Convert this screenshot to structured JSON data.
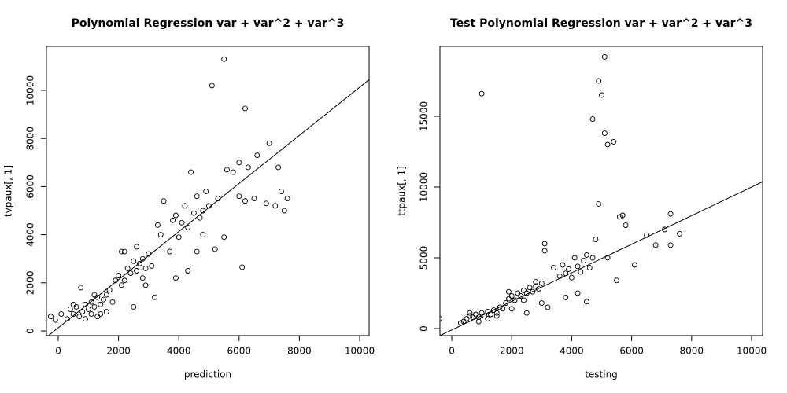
{
  "chart_data": [
    {
      "type": "scatter",
      "title": "Polynomial Regression var + var^2 + var^3",
      "xlabel": "prediction",
      "ylabel": "tvpaux[, 1]",
      "x": [
        -250,
        -100,
        100,
        300,
        400,
        500,
        600,
        700,
        800,
        900,
        1000,
        1100,
        1200,
        1300,
        1400,
        1500,
        1600,
        750,
        500,
        1100,
        1300,
        1600,
        1800,
        1900,
        2000,
        2100,
        2200,
        2300,
        2400,
        2500,
        2600,
        2700,
        2800,
        2900,
        3000,
        3100,
        2600,
        2200,
        2500,
        2900,
        3200,
        3500,
        3400,
        3700,
        3800,
        3900,
        4000,
        4100,
        4200,
        4300,
        4400,
        4500,
        4600,
        4700,
        4800,
        4900,
        5000,
        5100,
        5500,
        4300,
        3900,
        5200,
        5500,
        5600,
        5800,
        6000,
        6100,
        6200,
        6300,
        6500,
        6600,
        6900,
        7000,
        7200,
        7300,
        7400,
        7500,
        7600,
        6000,
        6200,
        4800,
        5300,
        4600,
        3300,
        2800,
        1700,
        900,
        1200,
        1400,
        2100
      ],
      "y": [
        600,
        450,
        700,
        500,
        900,
        700,
        1000,
        600,
        800,
        1100,
        900,
        1200,
        1000,
        1400,
        1100,
        1300,
        1500,
        1800,
        1100,
        700,
        600,
        800,
        1200,
        2100,
        2300,
        1900,
        2100,
        2600,
        2400,
        2900,
        2500,
        2800,
        3000,
        2600,
        3200,
        2700,
        3500,
        3300,
        1000,
        1900,
        1400,
        5400,
        4000,
        3300,
        4600,
        4800,
        3900,
        4500,
        5200,
        4300,
        6600,
        4900,
        5600,
        4700,
        5000,
        5800,
        5200,
        10200,
        11300,
        2500,
        2200,
        3400,
        3900,
        6700,
        6600,
        5600,
        2650,
        9250,
        6800,
        5500,
        7300,
        5300,
        7800,
        5200,
        6800,
        5800,
        5000,
        5500,
        7000,
        5400,
        4000,
        5500,
        3300,
        4400,
        2200,
        1700,
        500,
        1500,
        700,
        3300
      ],
      "xlim": [
        -392,
        10313
      ],
      "ylim": [
        -196,
        11830
      ],
      "xticks": [
        0,
        2000,
        4000,
        6000,
        8000,
        10000
      ],
      "yticks": [
        0,
        2000,
        4000,
        6000,
        8000,
        10000
      ],
      "abline": {
        "intercept": 130,
        "slope": 1.0
      }
    },
    {
      "type": "scatter",
      "title": "Test Polynomial Regression var + var^2 + var^3",
      "xlabel": "testing",
      "ylabel": "ttpaux[, 1]",
      "x": [
        -400,
        300,
        400,
        500,
        600,
        700,
        800,
        900,
        1000,
        1100,
        1200,
        1300,
        1400,
        1500,
        1600,
        1700,
        1800,
        1900,
        2000,
        2100,
        2200,
        2300,
        2400,
        2500,
        2600,
        2700,
        2800,
        2900,
        3000,
        3100,
        3100,
        2000,
        1500,
        2500,
        3200,
        3400,
        3600,
        3700,
        3800,
        3900,
        4000,
        4100,
        4200,
        4300,
        4400,
        4500,
        4600,
        4700,
        4800,
        3800,
        4200,
        4500,
        1000,
        4700,
        4900,
        5100,
        5000,
        5100,
        5200,
        5400,
        4900,
        7300,
        6500,
        7100,
        7300,
        7600,
        6800,
        5700,
        5600,
        5800,
        6100,
        5200,
        5500,
        3000,
        1200,
        2800,
        2400,
        600,
        1900,
        900
      ],
      "y": [
        700,
        400,
        500,
        700,
        900,
        800,
        1000,
        800,
        1100,
        900,
        1200,
        1000,
        1300,
        1100,
        1500,
        1400,
        1800,
        2100,
        2300,
        2000,
        2500,
        2300,
        2700,
        2500,
        2900,
        2600,
        3000,
        2800,
        3200,
        6000,
        5500,
        1400,
        900,
        1100,
        1500,
        4300,
        3700,
        4500,
        3900,
        4200,
        3600,
        5000,
        4400,
        4000,
        4800,
        5200,
        4300,
        5000,
        6300,
        2200,
        2500,
        1900,
        16600,
        14800,
        17500,
        19200,
        16500,
        13800,
        13000,
        13200,
        8800,
        8100,
        6600,
        7000,
        5900,
        6700,
        5900,
        8000,
        7900,
        7300,
        4500,
        5000,
        3400,
        1800,
        700,
        3300,
        2000,
        1100,
        2600,
        500
      ],
      "xlim": [
        -394,
        10367
      ],
      "ylim": [
        -500,
        19944
      ],
      "xticks": [
        0,
        2000,
        4000,
        6000,
        8000,
        10000
      ],
      "yticks": [
        0,
        5000,
        10000,
        15000
      ],
      "abline": {
        "intercept": -100,
        "slope": 1.01
      }
    }
  ]
}
